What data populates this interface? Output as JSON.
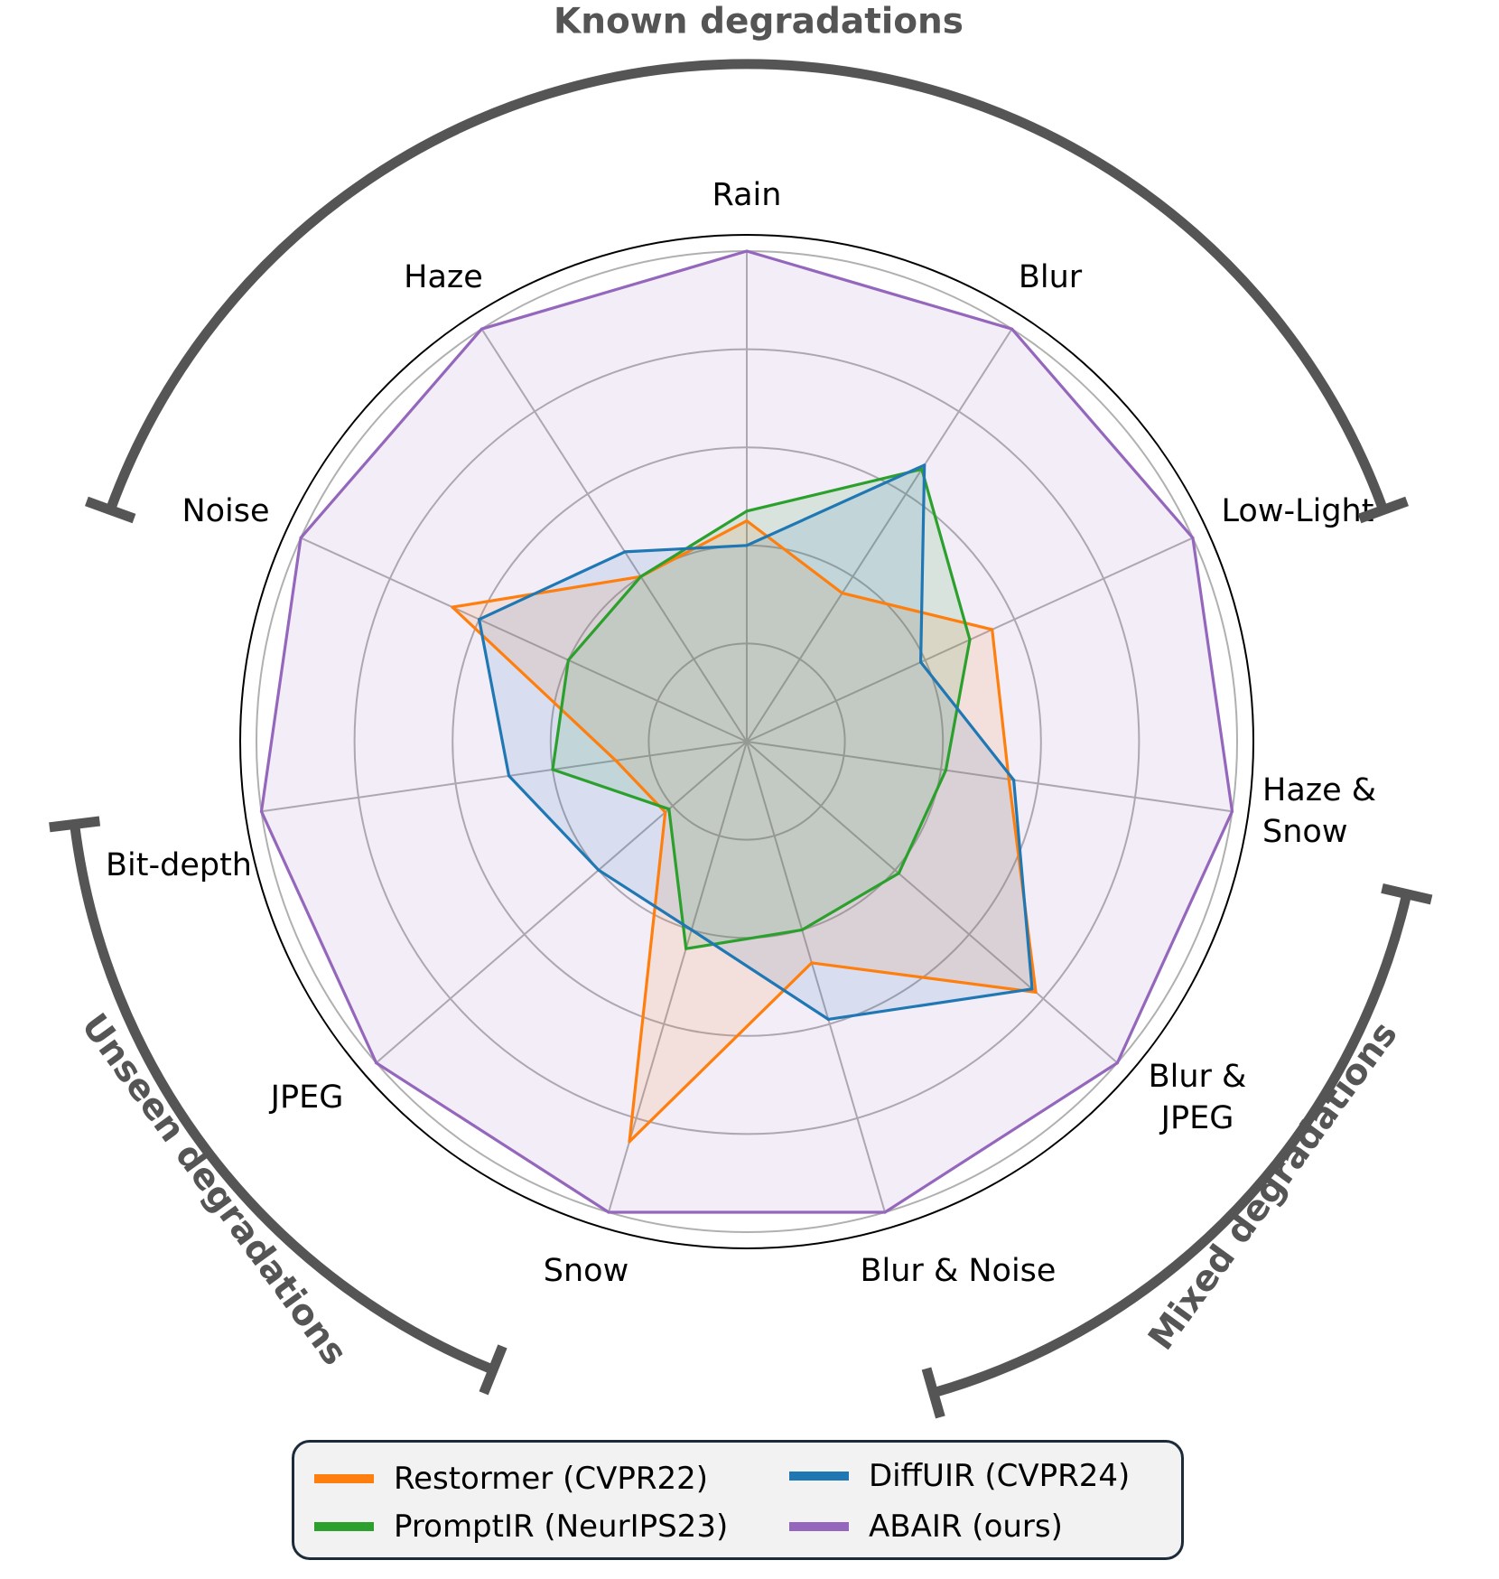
{
  "chart_data": {
    "type": "radar",
    "axes": [
      "Rain",
      "Blur",
      "Low-Light",
      "Haze & Snow",
      "Blur & JPEG",
      "Blur & Noise",
      "Snow",
      "JPEG",
      "Bit-depth",
      "Noise",
      "Haze"
    ],
    "axis_labels_display": [
      [
        "Rain"
      ],
      [
        "Blur"
      ],
      [
        "Low-Light"
      ],
      [
        "Haze &",
        "Snow"
      ],
      [
        "Blur &",
        "JPEG"
      ],
      [
        "Blur & Noise"
      ],
      [
        "Snow"
      ],
      [
        "JPEG"
      ],
      [
        "Bit-depth"
      ],
      [
        "Noise"
      ],
      [
        "Haze"
      ]
    ],
    "rlim": [
      0,
      1
    ],
    "grid_levels": [
      0.2,
      0.4,
      0.6,
      0.8,
      1.0
    ],
    "grid": true,
    "series": [
      {
        "name": "Restormer (CVPR22)",
        "color": "#ff7f0e",
        "values": [
          0.45,
          0.36,
          0.55,
          0.54,
          0.78,
          0.47,
          0.85,
          0.22,
          0.27,
          0.66,
          0.4
        ]
      },
      {
        "name": "PromptIR (NeurIPS23)",
        "color": "#2ca02c",
        "values": [
          0.47,
          0.66,
          0.5,
          0.41,
          0.41,
          0.4,
          0.44,
          0.21,
          0.4,
          0.4,
          0.4
        ]
      },
      {
        "name": "DiffUIR (CVPR24)",
        "color": "#1f77b4",
        "values": [
          0.4,
          0.67,
          0.39,
          0.55,
          0.77,
          0.59,
          0.4,
          0.4,
          0.49,
          0.6,
          0.46
        ]
      },
      {
        "name": "ABAIR (ours)",
        "color": "#9467bd",
        "values": [
          1,
          1,
          1,
          1,
          1,
          1,
          1,
          1,
          1,
          1,
          1
        ]
      }
    ],
    "groups": [
      {
        "label": "Known degradations"
      },
      {
        "label": "Mixed degradations"
      },
      {
        "label": "Unseen degradations"
      }
    ],
    "legend": {
      "placement": "bottom",
      "columns": 2
    }
  }
}
